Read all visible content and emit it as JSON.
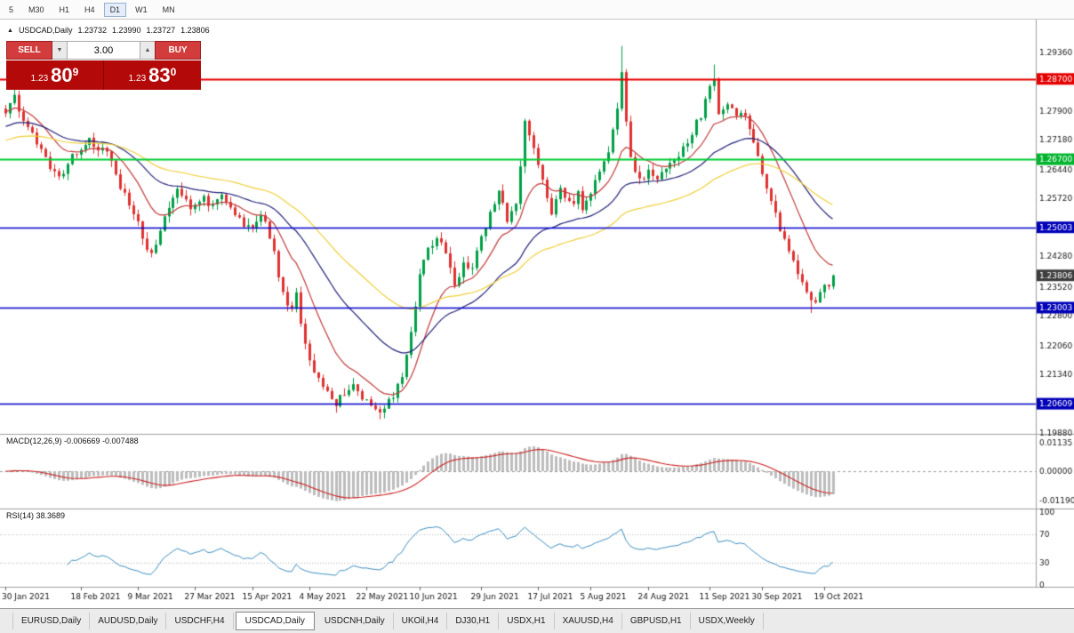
{
  "toolbar": {
    "timeframes": [
      "5",
      "M30",
      "H1",
      "H4",
      "D1",
      "W1",
      "MN"
    ],
    "active": "D1"
  },
  "chart_header": {
    "direction": "▲",
    "symbol": "USDCAD,Daily",
    "open": "1.23732",
    "high": "1.23990",
    "low": "1.23727",
    "close": "1.23806"
  },
  "trade_panel": {
    "sell_label": "SELL",
    "buy_label": "BUY",
    "volume": "3.00",
    "spinner_down": "▼",
    "spinner_up": "▲",
    "sell_price_prefix": "1.23",
    "sell_price_big": "80",
    "sell_price_sup": "9",
    "buy_price_prefix": "1.23",
    "buy_price_big": "83",
    "buy_price_sup": "0"
  },
  "indicator_labels": {
    "macd": "MACD(12,26,9) -0.006669 -0.007488",
    "rsi": "RSI(14) 38.3689"
  },
  "tabs": {
    "items": [
      "EURUSD,Daily",
      "AUDUSD,Daily",
      "USDCHF,H4",
      "USDCAD,Daily",
      "USDCNH,Daily",
      "UKOil,H4",
      "DJ30,H1",
      "USDX,H1",
      "XAUUSD,H4",
      "GBPUSD,H1",
      "USDX,Weekly"
    ],
    "active": "USDCAD,Daily"
  },
  "chart_data": {
    "type": "candlestick",
    "symbol": "USDCAD",
    "timeframe": "Daily",
    "ohlc_display": {
      "open": 1.23732,
      "high": 1.2399,
      "low": 1.23727,
      "close": 1.23806
    },
    "bars": 189,
    "current_price": 1.23806,
    "current_badge": {
      "label": "1.23806",
      "color": "#3d3d3d"
    },
    "price_axis_ticks": [
      "1.29360",
      "1.27900",
      "1.27180",
      "1.26440",
      "1.25720",
      "1.24280",
      "1.23520",
      "1.22800",
      "1.22060",
      "1.21340",
      "1.19880"
    ],
    "levels": [
      {
        "price": 1.287,
        "label": "1.28700",
        "color": "#e60000",
        "badge": "#e60000",
        "width": 2
      },
      {
        "price": 1.267,
        "label": "1.26700",
        "color": "#00cc33",
        "badge": "#00b42d",
        "width": 2
      },
      {
        "price": 1.25003,
        "label": "1.25003",
        "color": "#0000cc",
        "badge": "#0000b8",
        "width": 1.3
      },
      {
        "price": 1.23003,
        "label": "1.23003",
        "color": "#0000cc",
        "badge": "#0000b8",
        "width": 1.3
      },
      {
        "price": 1.20609,
        "label": "1.20609",
        "color": "#0000cc",
        "badge": "#0000b8",
        "width": 1.3
      }
    ],
    "colors": {
      "up": "#009f46",
      "down": "#e03131",
      "hist": "#bdbdbd",
      "macd_signal": "#cc2020",
      "rsi_line": "#3e8fc0",
      "axis_text": "#1a1a1a",
      "separator": "#a0a0a0"
    },
    "mas": [
      {
        "name": "fast-ma",
        "period": 13,
        "color": "#c23b3b",
        "seed": 1.279
      },
      {
        "name": "mid-ma",
        "period": 34,
        "color": "#23237a",
        "seed": 1.275
      },
      {
        "name": "slow-ma",
        "period": 62,
        "color": "#f0d03a",
        "seed": 1.2715
      }
    ],
    "close_waypoints": [
      [
        0,
        1.2795
      ],
      [
        2,
        1.2828
      ],
      [
        4,
        1.2768
      ],
      [
        6,
        1.274
      ],
      [
        8,
        1.2692
      ],
      [
        10,
        1.2655
      ],
      [
        12,
        1.2618
      ],
      [
        14,
        1.2662
      ],
      [
        17,
        1.27
      ],
      [
        19,
        1.2728
      ],
      [
        21,
        1.2692
      ],
      [
        23,
        1.27
      ],
      [
        25,
        1.2632
      ],
      [
        27,
        1.2576
      ],
      [
        29,
        1.254
      ],
      [
        31,
        1.2476
      ],
      [
        33,
        1.2432
      ],
      [
        35,
        1.25
      ],
      [
        37,
        1.2558
      ],
      [
        39,
        1.2588
      ],
      [
        41,
        1.2562
      ],
      [
        43,
        1.2546
      ],
      [
        45,
        1.2572
      ],
      [
        47,
        1.2556
      ],
      [
        49,
        1.2584
      ],
      [
        51,
        1.2542
      ],
      [
        53,
        1.2516
      ],
      [
        56,
        1.25
      ],
      [
        58,
        1.2532
      ],
      [
        60,
        1.2482
      ],
      [
        61,
        1.244
      ],
      [
        63,
        1.233
      ],
      [
        65,
        1.23
      ],
      [
        66,
        1.233
      ],
      [
        67,
        1.226
      ],
      [
        69,
        1.216
      ],
      [
        71,
        1.212
      ],
      [
        73,
        1.2085
      ],
      [
        75,
        1.2065
      ],
      [
        77,
        1.209
      ],
      [
        79,
        1.2105
      ],
      [
        81,
        1.208
      ],
      [
        83,
        1.2062
      ],
      [
        85,
        1.204
      ],
      [
        88,
        1.2085
      ],
      [
        90,
        1.2125
      ],
      [
        92,
        1.223
      ],
      [
        94,
        1.238
      ],
      [
        96,
        1.244
      ],
      [
        98,
        1.248
      ],
      [
        100,
        1.243
      ],
      [
        102,
        1.235
      ],
      [
        104,
        1.242
      ],
      [
        106,
        1.2396
      ],
      [
        108,
        1.2482
      ],
      [
        110,
        1.2532
      ],
      [
        112,
        1.2596
      ],
      [
        114,
        1.2522
      ],
      [
        116,
        1.256
      ],
      [
        118,
        1.2758
      ],
      [
        120,
        1.27
      ],
      [
        122,
        1.262
      ],
      [
        124,
        1.254
      ],
      [
        126,
        1.26
      ],
      [
        128,
        1.2556
      ],
      [
        130,
        1.2582
      ],
      [
        131,
        1.255
      ],
      [
        133,
        1.259
      ],
      [
        135,
        1.264
      ],
      [
        137,
        1.269
      ],
      [
        139,
        1.28
      ],
      [
        140,
        1.2878
      ],
      [
        141,
        1.276
      ],
      [
        142,
        1.2666
      ],
      [
        144,
        1.2614
      ],
      [
        146,
        1.2642
      ],
      [
        148,
        1.2618
      ],
      [
        150,
        1.2656
      ],
      [
        152,
        1.2666
      ],
      [
        154,
        1.2702
      ],
      [
        156,
        1.2736
      ],
      [
        158,
        1.2782
      ],
      [
        160,
        1.285
      ],
      [
        161,
        1.2862
      ],
      [
        162,
        1.2775
      ],
      [
        164,
        1.2812
      ],
      [
        166,
        1.2782
      ],
      [
        168,
        1.277
      ],
      [
        170,
        1.2722
      ],
      [
        172,
        1.264
      ],
      [
        174,
        1.2572
      ],
      [
        176,
        1.2492
      ],
      [
        178,
        1.2432
      ],
      [
        180,
        1.2392
      ],
      [
        182,
        1.2332
      ],
      [
        184,
        1.2306
      ],
      [
        186,
        1.2355
      ],
      [
        187,
        1.2362
      ],
      [
        188,
        1.23806
      ]
    ],
    "spikes": [
      {
        "i": 140,
        "high": 1.2952
      },
      {
        "i": 161,
        "high": 1.2906
      },
      {
        "i": 85,
        "low": 1.2022
      },
      {
        "i": 183,
        "low": 1.2287
      }
    ],
    "noise": 0.0011,
    "wick": 0.0017,
    "seed": 987654,
    "date_labels": [
      {
        "i": 0,
        "text": "30 Jan 2021"
      },
      {
        "i": 17,
        "text": "18 Feb 2021"
      },
      {
        "i": 30,
        "text": "9 Mar 2021"
      },
      {
        "i": 43,
        "text": "27 Mar 2021"
      },
      {
        "i": 56,
        "text": "15 Apr 2021"
      },
      {
        "i": 69,
        "text": "4 May 2021"
      },
      {
        "i": 82,
        "text": "22 May 2021"
      },
      {
        "i": 94,
        "text": "10 Jun 2021"
      },
      {
        "i": 108,
        "text": "29 Jun 2021"
      },
      {
        "i": 121,
        "text": "17 Jul 2021"
      },
      {
        "i": 133,
        "text": "5 Aug 2021"
      },
      {
        "i": 146,
        "text": "24 Aug 2021"
      },
      {
        "i": 160,
        "text": "11 Sep 2021"
      },
      {
        "i": 172,
        "text": "30 Sep 2021"
      },
      {
        "i": 186,
        "text": "19 Oct 2021"
      }
    ],
    "macd": {
      "label": "MACD(12,26,9)",
      "value": -0.006669,
      "signal": -0.007488,
      "ticks": [
        "0.01135",
        "0.00000",
        "-0.01190"
      ],
      "range": 0.0135
    },
    "rsi": {
      "label": "RSI(14)",
      "value": 38.3689,
      "period": 14,
      "ticks": [
        "100",
        "70",
        "30",
        "0"
      ],
      "levels": [
        70,
        30
      ]
    }
  }
}
